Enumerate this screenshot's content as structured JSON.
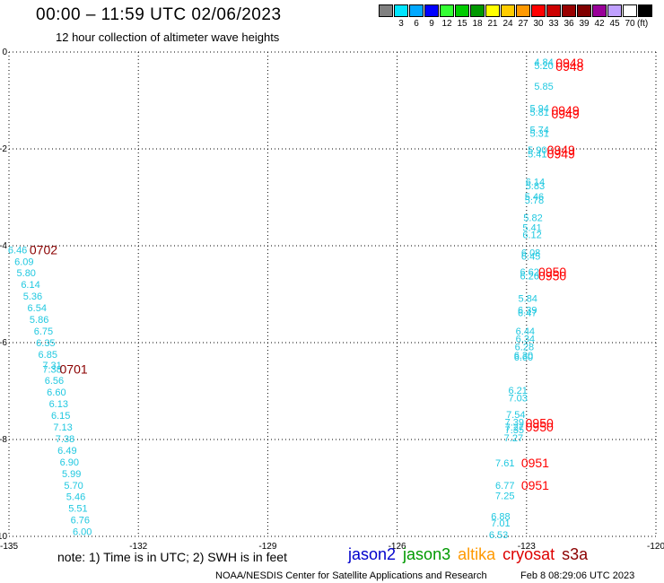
{
  "header": {
    "title": "00:00 – 11:59 UTC 02/06/2023",
    "subtitle": "12 hour collection of altimeter wave heights"
  },
  "colorbar": {
    "colors": [
      "#808080",
      "#00e5ff",
      "#00a8ff",
      "#0000ff",
      "#33ff33",
      "#00cc00",
      "#009900",
      "#ffff00",
      "#ffcc00",
      "#ff9900",
      "#ff0000",
      "#cc0000",
      "#990000",
      "#800000",
      "#990099",
      "#c0a0ff",
      "#ffffff",
      "#000000"
    ],
    "labels": [
      "3",
      "6",
      "9",
      "12",
      "15",
      "18",
      "21",
      "24",
      "27",
      "30",
      "33",
      "36",
      "39",
      "42",
      "45",
      "70"
    ],
    "unit": "(ft)"
  },
  "map": {
    "lon_ticks": [
      "-135",
      "-132",
      "-129",
      "-126",
      "-123",
      "-120"
    ],
    "lat_ticks": [
      "0",
      "-2",
      "-4",
      "-6",
      "-8",
      "-10"
    ],
    "text_color": "#20c8e0"
  },
  "tracks": [
    {
      "name": "track-0702-0701",
      "times": [
        {
          "label": "0702",
          "lon": -134.2,
          "lat": -4.08,
          "color": "#8b0000"
        },
        {
          "label": "0701",
          "lon": -133.5,
          "lat": -6.55,
          "color": "#8b0000"
        }
      ],
      "points": [
        {
          "v": "6.46",
          "lon": -134.8,
          "lat": -4.08
        },
        {
          "v": "6.09",
          "lon": -134.65,
          "lat": -4.32
        },
        {
          "v": "5.80",
          "lon": -134.6,
          "lat": -4.56
        },
        {
          "v": "6.14",
          "lon": -134.5,
          "lat": -4.8
        },
        {
          "v": "5.36",
          "lon": -134.45,
          "lat": -5.04
        },
        {
          "v": "6.54",
          "lon": -134.35,
          "lat": -5.28
        },
        {
          "v": "5.86",
          "lon": -134.3,
          "lat": -5.52
        },
        {
          "v": "6.75",
          "lon": -134.2,
          "lat": -5.76
        },
        {
          "v": "6.35",
          "lon": -134.15,
          "lat": -6.0
        },
        {
          "v": "6.85",
          "lon": -134.1,
          "lat": -6.24
        },
        {
          "v": "7.31",
          "lon": -134.0,
          "lat": -6.46
        },
        {
          "v": "7.38",
          "lon": -134.0,
          "lat": -6.55
        },
        {
          "v": "6.56",
          "lon": -133.95,
          "lat": -6.78
        },
        {
          "v": "6.60",
          "lon": -133.9,
          "lat": -7.02
        },
        {
          "v": "6.13",
          "lon": -133.85,
          "lat": -7.26
        },
        {
          "v": "6.15",
          "lon": -133.8,
          "lat": -7.5
        },
        {
          "v": "7.13",
          "lon": -133.75,
          "lat": -7.74
        },
        {
          "v": "7.38",
          "lon": -133.7,
          "lat": -7.98
        },
        {
          "v": "6.49",
          "lon": -133.65,
          "lat": -8.22
        },
        {
          "v": "6.90",
          "lon": -133.6,
          "lat": -8.46
        },
        {
          "v": "5.99",
          "lon": -133.55,
          "lat": -8.7
        },
        {
          "v": "5.70",
          "lon": -133.5,
          "lat": -8.94
        },
        {
          "v": "5.46",
          "lon": -133.45,
          "lat": -9.18
        },
        {
          "v": "5.51",
          "lon": -133.4,
          "lat": -9.42
        },
        {
          "v": "6.76",
          "lon": -133.35,
          "lat": -9.66
        },
        {
          "v": "6.00",
          "lon": -133.3,
          "lat": -9.9
        }
      ]
    },
    {
      "name": "track-0948-0951",
      "times": [
        {
          "label": "0948",
          "lon": -122.0,
          "lat": -0.22,
          "color": "#ff0000"
        },
        {
          "label": "0948",
          "lon": -122.0,
          "lat": -0.3,
          "color": "#ff0000"
        },
        {
          "label": "0949",
          "lon": -122.1,
          "lat": -1.2,
          "color": "#ff0000"
        },
        {
          "label": "0949",
          "lon": -122.1,
          "lat": -1.28,
          "color": "#ff0000"
        },
        {
          "label": "0949",
          "lon": -122.2,
          "lat": -2.02,
          "color": "#ff0000"
        },
        {
          "label": "0949",
          "lon": -122.2,
          "lat": -2.1,
          "color": "#ff0000"
        },
        {
          "label": "0950",
          "lon": -122.4,
          "lat": -4.54,
          "color": "#ff0000"
        },
        {
          "label": "0950",
          "lon": -122.4,
          "lat": -4.62,
          "color": "#ff0000"
        },
        {
          "label": "0950",
          "lon": -122.7,
          "lat": -7.66,
          "color": "#ff0000"
        },
        {
          "label": "0950",
          "lon": -122.7,
          "lat": -7.74,
          "color": "#ff0000"
        },
        {
          "label": "0951",
          "lon": -122.8,
          "lat": -8.48,
          "color": "#ff0000"
        },
        {
          "label": "0951",
          "lon": -122.8,
          "lat": -8.94,
          "color": "#ff0000"
        }
      ],
      "points": [
        {
          "v": "4.84",
          "lon": -122.6,
          "lat": -0.2
        },
        {
          "v": "5.20",
          "lon": -122.6,
          "lat": -0.28
        },
        {
          "v": "5.85",
          "lon": -122.6,
          "lat": -0.7
        },
        {
          "v": "5.94",
          "lon": -122.7,
          "lat": -1.16
        },
        {
          "v": "5.81",
          "lon": -122.7,
          "lat": -1.24
        },
        {
          "v": "5.74",
          "lon": -122.7,
          "lat": -1.6
        },
        {
          "v": "5.31",
          "lon": -122.7,
          "lat": -1.68
        },
        {
          "v": "5.90",
          "lon": -122.75,
          "lat": -2.02
        },
        {
          "v": "5.41",
          "lon": -122.75,
          "lat": -2.1
        },
        {
          "v": "6.14",
          "lon": -122.8,
          "lat": -2.68
        },
        {
          "v": "5.83",
          "lon": -122.8,
          "lat": -2.76
        },
        {
          "v": "5.46",
          "lon": -122.82,
          "lat": -2.98
        },
        {
          "v": "5.78",
          "lon": -122.82,
          "lat": -3.06
        },
        {
          "v": "5.82",
          "lon": -122.85,
          "lat": -3.42
        },
        {
          "v": "5.41",
          "lon": -122.87,
          "lat": -3.62
        },
        {
          "v": "6.12",
          "lon": -122.87,
          "lat": -3.77
        },
        {
          "v": "6.08",
          "lon": -122.9,
          "lat": -4.14
        },
        {
          "v": "6.45",
          "lon": -122.9,
          "lat": -4.21
        },
        {
          "v": "6.62",
          "lon": -122.93,
          "lat": -4.54
        },
        {
          "v": "6.26",
          "lon": -122.93,
          "lat": -4.62
        },
        {
          "v": "5.84",
          "lon": -122.97,
          "lat": -5.08
        },
        {
          "v": "6.39",
          "lon": -122.98,
          "lat": -5.32
        },
        {
          "v": "6.47",
          "lon": -122.98,
          "lat": -5.38
        },
        {
          "v": "6.44",
          "lon": -123.03,
          "lat": -5.76
        },
        {
          "v": "6.34",
          "lon": -123.03,
          "lat": -5.92
        },
        {
          "v": "6.28",
          "lon": -123.05,
          "lat": -6.08
        },
        {
          "v": "6.30",
          "lon": -123.07,
          "lat": -6.26
        },
        {
          "v": "6.60",
          "lon": -123.07,
          "lat": -6.3
        },
        {
          "v": "6.21",
          "lon": -123.2,
          "lat": -6.98
        },
        {
          "v": "7.03",
          "lon": -123.2,
          "lat": -7.14
        },
        {
          "v": "7.54",
          "lon": -123.25,
          "lat": -7.48
        },
        {
          "v": "7.39",
          "lon": -123.28,
          "lat": -7.64
        },
        {
          "v": "7.27",
          "lon": -123.28,
          "lat": -7.74
        },
        {
          "v": "7.35",
          "lon": -123.28,
          "lat": -7.8
        },
        {
          "v": "7.27",
          "lon": -123.3,
          "lat": -7.96
        },
        {
          "v": "7.61",
          "lon": -123.5,
          "lat": -8.48
        },
        {
          "v": "6.77",
          "lon": -123.5,
          "lat": -8.94
        },
        {
          "v": "7.25",
          "lon": -123.5,
          "lat": -9.16
        },
        {
          "v": "6.88",
          "lon": -123.6,
          "lat": -9.58
        },
        {
          "v": "7.01",
          "lon": -123.6,
          "lat": -9.72
        },
        {
          "v": "6.53",
          "lon": -123.65,
          "lat": -9.96
        }
      ]
    }
  ],
  "footer": {
    "note": "note:  1) Time is in UTC;  2) SWH is in feet",
    "legend": [
      {
        "name": "jason2",
        "color": "#0000cc"
      },
      {
        "name": "jason3",
        "color": "#009900"
      },
      {
        "name": "altika",
        "color": "#ff9900"
      },
      {
        "name": "cryosat",
        "color": "#dd0000"
      },
      {
        "name": "s3a",
        "color": "#8b0000"
      }
    ],
    "org": "NOAA/NESDIS Center for Satellite Applications and Research",
    "date": "Feb  8 08:29:06 UTC 2023"
  }
}
